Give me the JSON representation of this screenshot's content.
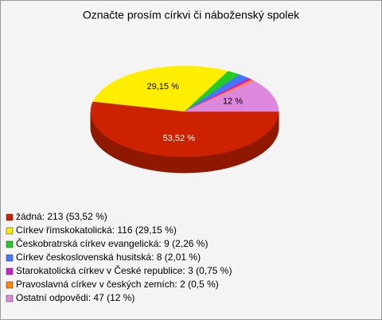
{
  "chart_data": {
    "type": "pie3d",
    "title": "Označte prosím církvi či náboženský spolek",
    "categories": [
      "žádná: 213 (53,52 %)",
      "Církev římskokatolická: 116 (29,15 %)",
      "Českobratrská církev evangelická: 9 (2,26 %)",
      "Církev československá husitská: 8 (2,01 %)",
      "Starokatolická církev v České republice: 3 (0,75 %)",
      "Pravoslavná církev v českých zemích: 2 (0,5 %)",
      "Ostatní odpovědi: 47 (12 %)"
    ],
    "counts": [
      213,
      116,
      9,
      8,
      3,
      2,
      47
    ],
    "values": [
      53.52,
      29.15,
      2.26,
      2.01,
      0.75,
      0.5,
      12
    ],
    "value_labels": [
      "53,52 %",
      "29,15 %",
      null,
      null,
      null,
      null,
      "12 %"
    ],
    "colors": [
      "#cc2200",
      "#ffee00",
      "#22cc22",
      "#4477ff",
      "#cc22cc",
      "#ff8800",
      "#dd88dd"
    ]
  }
}
